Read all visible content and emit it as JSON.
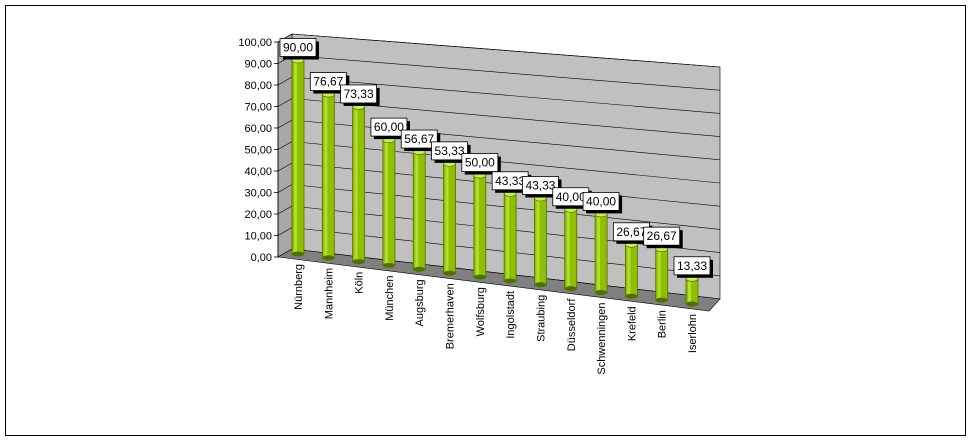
{
  "chart_data": {
    "type": "bar",
    "title": "",
    "xlabel": "",
    "ylabel": "",
    "ylim": [
      0,
      100
    ],
    "grid": true,
    "y_ticks": [
      "0,00",
      "10,00",
      "20,00",
      "30,00",
      "40,00",
      "50,00",
      "60,00",
      "70,00",
      "80,00",
      "90,00",
      "100,00"
    ],
    "categories": [
      "Nürnberg",
      "Mannheim",
      "Köln",
      "München",
      "Augsburg",
      "Bremerhaven",
      "Wolfsburg",
      "Ingolstadt",
      "Straubing",
      "Düsseldorf",
      "Schwenningen",
      "Krefeld",
      "Berlin",
      "Iserlohn"
    ],
    "values": [
      90.0,
      76.67,
      73.33,
      60.0,
      56.67,
      53.33,
      50.0,
      43.33,
      43.33,
      40.0,
      40.0,
      26.67,
      26.67,
      13.33
    ],
    "data_labels": [
      "90,00",
      "76,67",
      "73,33",
      "60,00",
      "56,67",
      "53,33",
      "50,00",
      "43,33",
      "43,33",
      "40,00",
      "40,00",
      "26,67",
      "26,67",
      "13,33"
    ],
    "colors": {
      "bar": "#8fbf00",
      "bar_dark": "#4f6f00",
      "bar_light": "#c8f050",
      "back_wall": "#c0c0c0",
      "floor": "#808080",
      "grid": "#000000",
      "label_bg": "#ffffff"
    }
  }
}
